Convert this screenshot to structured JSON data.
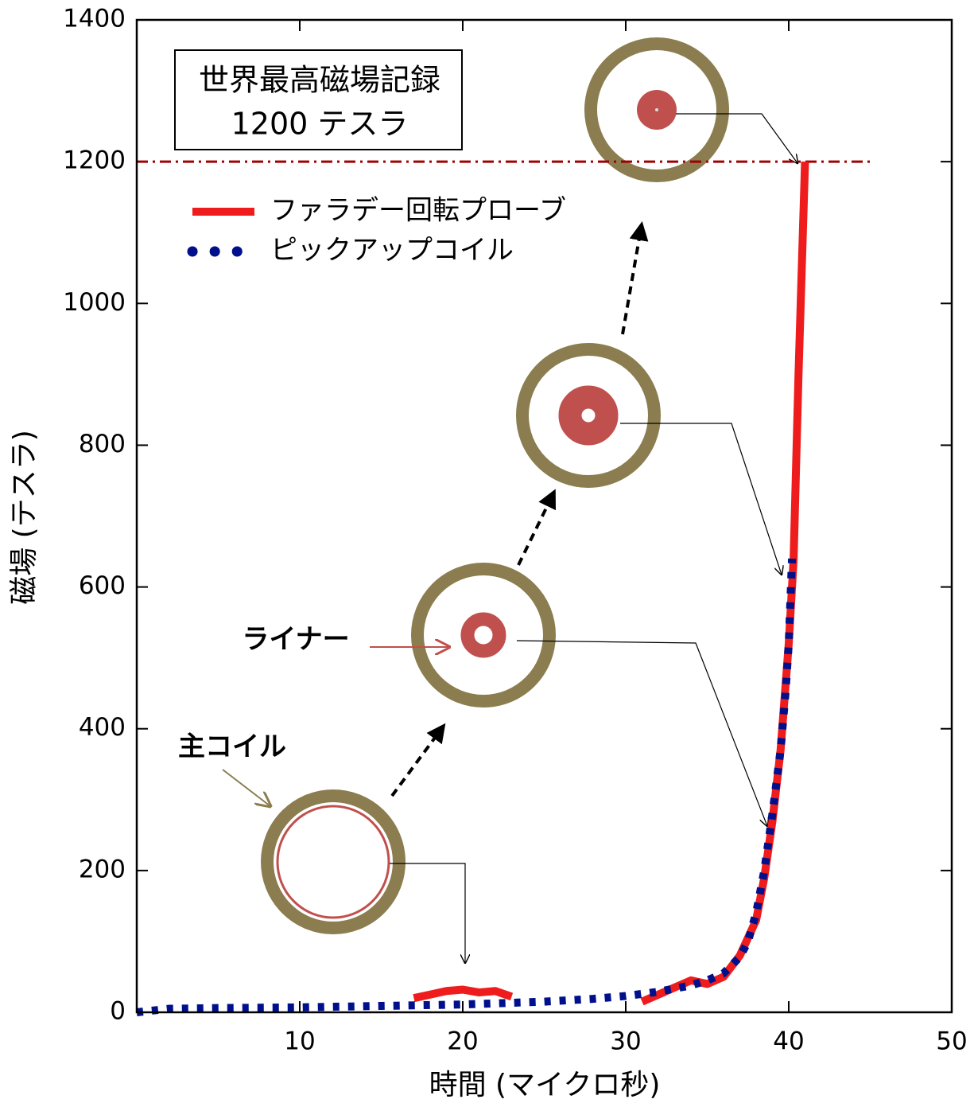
{
  "chart_data": {
    "type": "line",
    "xlabel": "時間 (マイクロ秒)",
    "ylabel": "磁場 (テスラ)",
    "xlim": [
      0,
      50
    ],
    "xticks": [
      10,
      20,
      30,
      40,
      50
    ],
    "ylim": [
      0,
      1400
    ],
    "yticks": [
      0,
      200,
      400,
      600,
      800,
      1000,
      1200,
      1400
    ],
    "legend": "upper left",
    "hline": {
      "value": 1200,
      "color": "#a00000"
    },
    "annotations": [
      "世界最高磁場記録",
      "1200 テスラ",
      "ライナー",
      "主コイル"
    ],
    "series": [
      {
        "name": "ファラデー回転プローブ",
        "color": "#ee1c1c",
        "style": "solid",
        "x": [
          17,
          18,
          19,
          20,
          21,
          22,
          23,
          24,
          31,
          32,
          33,
          34,
          35,
          36,
          37,
          38,
          38.5,
          39,
          39.5,
          40,
          40.3,
          40.6,
          41
        ],
        "values": [
          20,
          25,
          30,
          32,
          28,
          30,
          22,
          null,
          15,
          25,
          35,
          45,
          40,
          50,
          80,
          130,
          190,
          270,
          370,
          520,
          640,
          900,
          1200
        ]
      },
      {
        "name": "ピックアップコイル",
        "color": "#00108c",
        "style": "dotted",
        "x": [
          0,
          2,
          5,
          10,
          15,
          20,
          25,
          28,
          30,
          32,
          34,
          35,
          36,
          37,
          37.5,
          38,
          38.5,
          39,
          39.5,
          39.8,
          40,
          40.2
        ],
        "values": [
          0,
          5,
          6,
          7,
          9,
          11,
          15,
          19,
          23,
          29,
          38,
          45,
          55,
          78,
          100,
          140,
          200,
          280,
          370,
          450,
          520,
          640
        ]
      }
    ]
  }
}
